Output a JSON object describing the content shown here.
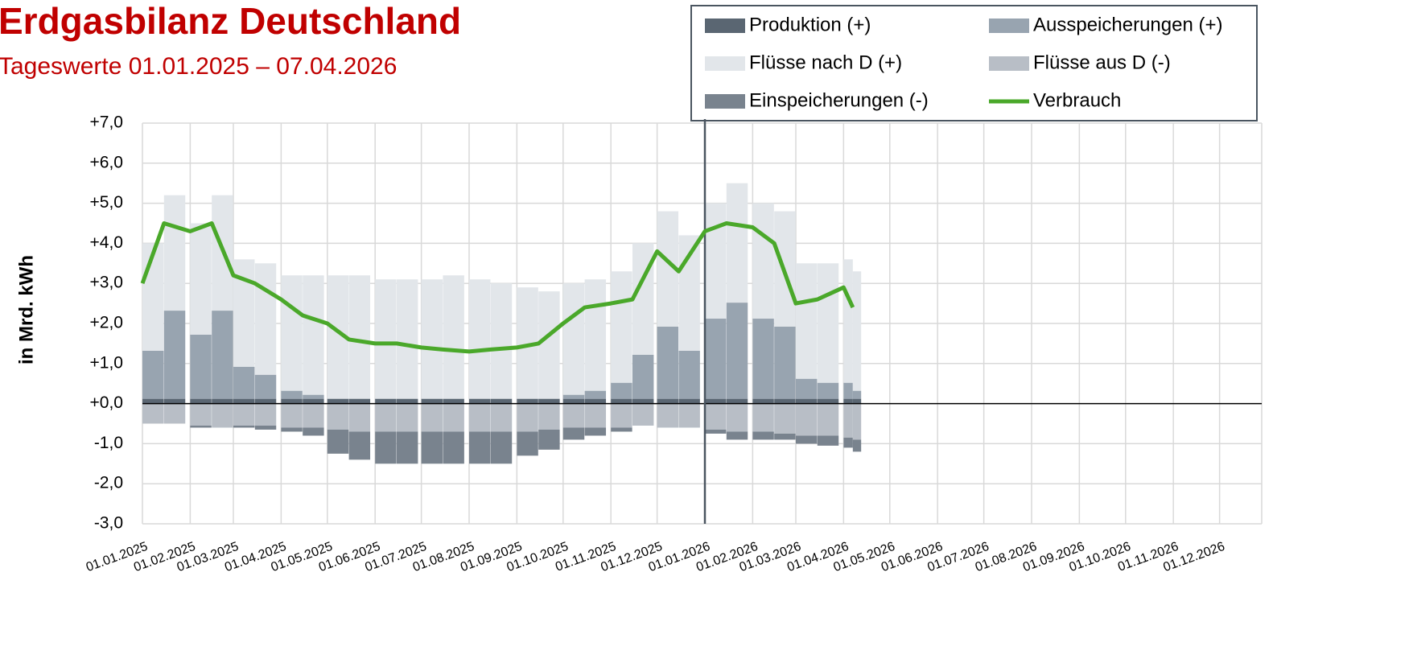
{
  "chart_data": {
    "type": "bar",
    "stacked": true,
    "title": "Erdgasbilanz Deutschland",
    "subtitle": "Tageswerte 01.01.2025 – 07.04.2026",
    "y_label": "in Mrd. kWh",
    "x": [
      "01.01.2025",
      "15.01.2025",
      "01.02.2025",
      "15.02.2025",
      "01.03.2025",
      "15.03.2025",
      "01.04.2025",
      "15.04.2025",
      "01.05.2025",
      "15.05.2025",
      "01.06.2025",
      "15.06.2025",
      "01.07.2025",
      "15.07.2025",
      "01.08.2025",
      "15.08.2025",
      "01.09.2025",
      "15.09.2025",
      "01.10.2025",
      "15.10.2025",
      "01.11.2025",
      "15.11.2025",
      "01.12.2025",
      "15.12.2025",
      "01.01.2026",
      "15.01.2026",
      "01.02.2026",
      "15.02.2026",
      "01.03.2026",
      "15.03.2026",
      "01.04.2026",
      "07.04.2026"
    ],
    "series": [
      {
        "name": "Produktion (+)",
        "color": "#5a6672",
        "values": [
          0.12,
          0.12,
          0.12,
          0.12,
          0.12,
          0.12,
          0.12,
          0.12,
          0.12,
          0.12,
          0.12,
          0.12,
          0.12,
          0.12,
          0.12,
          0.12,
          0.12,
          0.12,
          0.12,
          0.12,
          0.12,
          0.12,
          0.12,
          0.12,
          0.12,
          0.12,
          0.12,
          0.12,
          0.12,
          0.12,
          0.12,
          0.12
        ]
      },
      {
        "name": "Ausspeicherungen (+)",
        "color": "#98a4b0",
        "values": [
          1.2,
          2.2,
          1.6,
          2.2,
          0.8,
          0.6,
          0.2,
          0.1,
          0,
          0,
          0,
          0,
          0,
          0,
          0,
          0,
          0,
          0,
          0.1,
          0.2,
          0.4,
          1.1,
          1.8,
          1.2,
          2.0,
          2.4,
          2.0,
          1.8,
          0.5,
          0.4,
          0.4,
          0.2
        ]
      },
      {
        "name": "Flüsse nach D (+)",
        "color": "#e2e6ea",
        "values": [
          2.68,
          2.88,
          2.78,
          2.88,
          2.68,
          2.78,
          2.88,
          2.98,
          3.08,
          3.08,
          2.98,
          2.98,
          2.98,
          3.08,
          2.98,
          2.88,
          2.78,
          2.68,
          2.78,
          2.78,
          2.78,
          2.78,
          2.88,
          2.88,
          2.88,
          2.98,
          2.88,
          2.88,
          2.88,
          2.98,
          3.08,
          2.98
        ]
      },
      {
        "name": "Flüsse aus D (-)",
        "color": "#b8bec6",
        "values": [
          -0.5,
          -0.5,
          -0.55,
          -0.6,
          -0.55,
          -0.55,
          -0.6,
          -0.6,
          -0.65,
          -0.7,
          -0.7,
          -0.7,
          -0.7,
          -0.7,
          -0.7,
          -0.7,
          -0.7,
          -0.65,
          -0.6,
          -0.6,
          -0.6,
          -0.55,
          -0.6,
          -0.6,
          -0.65,
          -0.7,
          -0.7,
          -0.75,
          -0.8,
          -0.8,
          -0.85,
          -0.9
        ]
      },
      {
        "name": "Einspeicherungen (-)",
        "color": "#79838e",
        "values": [
          0,
          0,
          -0.05,
          0,
          -0.05,
          -0.1,
          -0.1,
          -0.2,
          -0.6,
          -0.7,
          -0.8,
          -0.8,
          -0.8,
          -0.8,
          -0.8,
          -0.8,
          -0.6,
          -0.5,
          -0.3,
          -0.2,
          -0.1,
          0,
          0,
          0,
          -0.1,
          -0.2,
          -0.2,
          -0.15,
          -0.2,
          -0.25,
          -0.25,
          -0.3
        ]
      },
      {
        "name": "Verbrauch",
        "color": "#4aa82a",
        "type": "line",
        "values": [
          3.0,
          4.5,
          4.3,
          4.5,
          3.2,
          3.0,
          2.6,
          2.2,
          2.0,
          1.6,
          1.5,
          1.5,
          1.4,
          1.35,
          1.3,
          1.35,
          1.4,
          1.5,
          2.0,
          2.4,
          2.5,
          2.6,
          3.8,
          3.3,
          4.3,
          4.5,
          4.4,
          4.0,
          2.5,
          2.6,
          2.9,
          2.4
        ]
      }
    ],
    "xlim": [
      "01.01.2025",
      "01.01.2027"
    ],
    "xticks": [
      "01.01.2025",
      "01.02.2025",
      "01.03.2025",
      "01.04.2025",
      "01.05.2025",
      "01.06.2025",
      "01.07.2025",
      "01.08.2025",
      "01.09.2025",
      "01.10.2025",
      "01.11.2025",
      "01.12.2025",
      "01.01.2026",
      "01.02.2026",
      "01.03.2026",
      "01.04.2026",
      "01.05.2026",
      "01.06.2026",
      "01.07.2026",
      "01.08.2026",
      "01.09.2026",
      "01.10.2026",
      "01.11.2026",
      "01.12.2026"
    ],
    "ylim": [
      -3,
      7
    ],
    "yticks": [
      {
        "value": -3,
        "label": "-3,0"
      },
      {
        "value": -2,
        "label": "-2,0"
      },
      {
        "value": -1,
        "label": "-1,0"
      },
      {
        "value": 0,
        "label": "+0,0"
      },
      {
        "value": 1,
        "label": "+1,0"
      },
      {
        "value": 2,
        "label": "+2,0"
      },
      {
        "value": 3,
        "label": "+3,0"
      },
      {
        "value": 4,
        "label": "+4,0"
      },
      {
        "value": 5,
        "label": "+5,0"
      },
      {
        "value": 6,
        "label": "+6,0"
      },
      {
        "value": 7,
        "label": "+7,0"
      }
    ],
    "grid": true,
    "vline": "01.01.2026",
    "legend": "top-right"
  }
}
